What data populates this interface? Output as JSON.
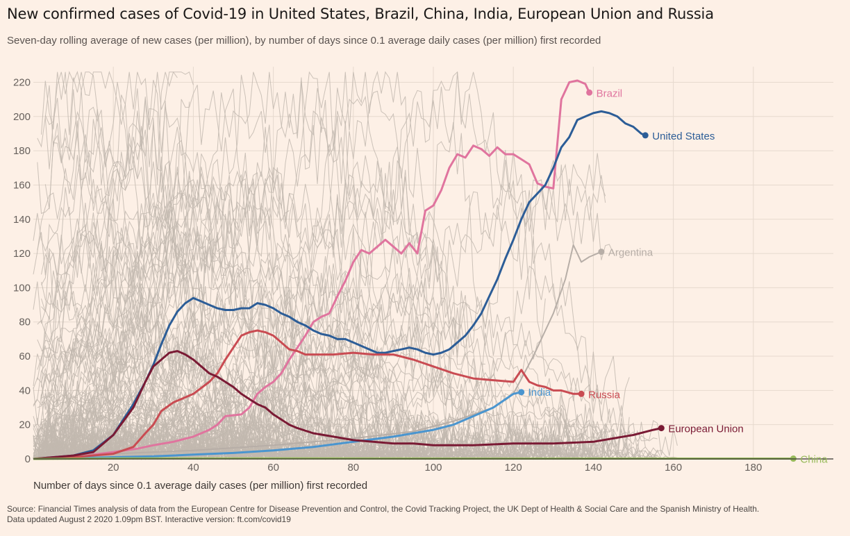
{
  "header": {
    "title": "New confirmed cases of Covid-19 in United States, Brazil, China, India, European Union and Russia",
    "subtitle": "Seven-day rolling average of new cases (per million), by number of days since 0.1 average daily cases (per million) first recorded"
  },
  "footer": {
    "source": "Source: Financial Times analysis of data from the European Centre for Disease Prevention and Control, the Covid Tracking Project, the UK Dept of Health & Social Care and the Spanish Ministry of Health.",
    "updated": "Data updated August 2 2020 1.09pm BST. Interactive version: ft.com/covid19"
  },
  "colors": {
    "background": "#fdf0e6",
    "grid": "#e6d9ce",
    "axis": "#33302e",
    "other_countries": "#c2b8af",
    "Brazil": "#e0749e",
    "United States": "#2c5d97",
    "Argentina": "#b7aea7",
    "India": "#4a95cf",
    "Russia": "#c94b52",
    "European Union": "#7a1a34",
    "China": "#98bb5c"
  },
  "chart_data": {
    "type": "line",
    "title": "New confirmed cases of Covid-19 in United States, Brazil, China, India, European Union and Russia",
    "subtitle": "Seven-day rolling average of new cases (per million), by number of days since 0.1 average daily cases (per million) first recorded",
    "xlabel": "Number of days since 0.1 average daily cases (per million) first recorded",
    "ylabel": "",
    "xlim": [
      0,
      190
    ],
    "ylim": [
      0,
      225
    ],
    "x_ticks": [
      20,
      40,
      60,
      80,
      100,
      120,
      140,
      160,
      180
    ],
    "y_ticks": [
      0,
      20,
      40,
      60,
      80,
      100,
      120,
      140,
      160,
      180,
      200,
      220
    ],
    "grid": "vertical and horizontal",
    "background_series": "many other countries drawn in light grey (unlabelled)",
    "series": [
      {
        "name": "Brazil",
        "points": [
          [
            0,
            0
          ],
          [
            10,
            1
          ],
          [
            20,
            4
          ],
          [
            26,
            6
          ],
          [
            30,
            8
          ],
          [
            35,
            10
          ],
          [
            40,
            13
          ],
          [
            44,
            17
          ],
          [
            46,
            20
          ],
          [
            48,
            25
          ],
          [
            52,
            26
          ],
          [
            54,
            30
          ],
          [
            56,
            38
          ],
          [
            58,
            42
          ],
          [
            60,
            45
          ],
          [
            62,
            50
          ],
          [
            64,
            58
          ],
          [
            66,
            65
          ],
          [
            68,
            72
          ],
          [
            70,
            80
          ],
          [
            72,
            83
          ],
          [
            74,
            85
          ],
          [
            76,
            95
          ],
          [
            78,
            104
          ],
          [
            80,
            115
          ],
          [
            82,
            122
          ],
          [
            84,
            120
          ],
          [
            86,
            124
          ],
          [
            88,
            128
          ],
          [
            90,
            124
          ],
          [
            92,
            120
          ],
          [
            94,
            126
          ],
          [
            96,
            120
          ],
          [
            98,
            145
          ],
          [
            100,
            148
          ],
          [
            102,
            157
          ],
          [
            104,
            170
          ],
          [
            106,
            178
          ],
          [
            108,
            176
          ],
          [
            110,
            183
          ],
          [
            112,
            181
          ],
          [
            114,
            177
          ],
          [
            116,
            182
          ],
          [
            118,
            178
          ],
          [
            120,
            178
          ],
          [
            122,
            175
          ],
          [
            124,
            172
          ],
          [
            126,
            161
          ],
          [
            128,
            159
          ],
          [
            130,
            158
          ],
          [
            132,
            210
          ],
          [
            134,
            220
          ],
          [
            136,
            221
          ],
          [
            138,
            219
          ],
          [
            139,
            214
          ]
        ]
      },
      {
        "name": "United States",
        "points": [
          [
            0,
            0
          ],
          [
            10,
            2
          ],
          [
            15,
            5
          ],
          [
            20,
            14
          ],
          [
            25,
            32
          ],
          [
            28,
            45
          ],
          [
            30,
            55
          ],
          [
            32,
            67
          ],
          [
            34,
            78
          ],
          [
            36,
            86
          ],
          [
            38,
            91
          ],
          [
            40,
            94
          ],
          [
            42,
            92
          ],
          [
            44,
            90
          ],
          [
            46,
            88
          ],
          [
            48,
            87
          ],
          [
            50,
            87
          ],
          [
            52,
            88
          ],
          [
            54,
            88
          ],
          [
            56,
            91
          ],
          [
            58,
            90
          ],
          [
            60,
            88
          ],
          [
            62,
            85
          ],
          [
            64,
            83
          ],
          [
            66,
            80
          ],
          [
            68,
            78
          ],
          [
            70,
            75
          ],
          [
            72,
            73
          ],
          [
            74,
            72
          ],
          [
            76,
            70
          ],
          [
            78,
            70
          ],
          [
            80,
            68
          ],
          [
            82,
            66
          ],
          [
            84,
            64
          ],
          [
            86,
            62
          ],
          [
            88,
            62
          ],
          [
            90,
            63
          ],
          [
            92,
            64
          ],
          [
            94,
            65
          ],
          [
            96,
            64
          ],
          [
            98,
            62
          ],
          [
            100,
            61
          ],
          [
            102,
            62
          ],
          [
            104,
            64
          ],
          [
            106,
            68
          ],
          [
            108,
            72
          ],
          [
            110,
            78
          ],
          [
            112,
            85
          ],
          [
            114,
            95
          ],
          [
            116,
            105
          ],
          [
            118,
            117
          ],
          [
            120,
            128
          ],
          [
            122,
            140
          ],
          [
            124,
            150
          ],
          [
            126,
            155
          ],
          [
            128,
            160
          ],
          [
            130,
            170
          ],
          [
            132,
            182
          ],
          [
            134,
            188
          ],
          [
            136,
            198
          ],
          [
            138,
            200
          ],
          [
            140,
            202
          ],
          [
            142,
            203
          ],
          [
            144,
            202
          ],
          [
            146,
            200
          ],
          [
            148,
            196
          ],
          [
            150,
            194
          ],
          [
            152,
            190
          ],
          [
            153,
            189
          ]
        ]
      },
      {
        "name": "Argentina",
        "points": [
          [
            0,
            0
          ],
          [
            20,
            3
          ],
          [
            40,
            5
          ],
          [
            60,
            8
          ],
          [
            80,
            12
          ],
          [
            95,
            16
          ],
          [
            105,
            22
          ],
          [
            115,
            30
          ],
          [
            120,
            38
          ],
          [
            125,
            60
          ],
          [
            130,
            85
          ],
          [
            133,
            105
          ],
          [
            135,
            125
          ],
          [
            137,
            115
          ],
          [
            139,
            118
          ],
          [
            141,
            120
          ],
          [
            142,
            121
          ]
        ]
      },
      {
        "name": "India",
        "points": [
          [
            0,
            0
          ],
          [
            10,
            0.5
          ],
          [
            20,
            1
          ],
          [
            30,
            1.5
          ],
          [
            40,
            2.5
          ],
          [
            50,
            3.5
          ],
          [
            60,
            5
          ],
          [
            70,
            7
          ],
          [
            80,
            10
          ],
          [
            90,
            13
          ],
          [
            100,
            17
          ],
          [
            105,
            20
          ],
          [
            110,
            25
          ],
          [
            115,
            30
          ],
          [
            120,
            38
          ],
          [
            122,
            39
          ]
        ]
      },
      {
        "name": "Russia",
        "points": [
          [
            0,
            0
          ],
          [
            10,
            1
          ],
          [
            20,
            3
          ],
          [
            25,
            7
          ],
          [
            28,
            15
          ],
          [
            30,
            20
          ],
          [
            32,
            28
          ],
          [
            35,
            33
          ],
          [
            38,
            36
          ],
          [
            40,
            38
          ],
          [
            44,
            45
          ],
          [
            46,
            50
          ],
          [
            48,
            58
          ],
          [
            50,
            65
          ],
          [
            52,
            72
          ],
          [
            54,
            74
          ],
          [
            56,
            75
          ],
          [
            58,
            74
          ],
          [
            60,
            72
          ],
          [
            62,
            68
          ],
          [
            64,
            64
          ],
          [
            66,
            63
          ],
          [
            68,
            61
          ],
          [
            70,
            61
          ],
          [
            75,
            61
          ],
          [
            80,
            62
          ],
          [
            85,
            61
          ],
          [
            90,
            61
          ],
          [
            95,
            58
          ],
          [
            100,
            54
          ],
          [
            105,
            50
          ],
          [
            110,
            47
          ],
          [
            115,
            46
          ],
          [
            120,
            45
          ],
          [
            122,
            52
          ],
          [
            124,
            45
          ],
          [
            126,
            43
          ],
          [
            128,
            42
          ],
          [
            130,
            40
          ],
          [
            132,
            40
          ],
          [
            135,
            38
          ],
          [
            137,
            38
          ]
        ]
      },
      {
        "name": "European Union",
        "points": [
          [
            0,
            0
          ],
          [
            10,
            2
          ],
          [
            15,
            4
          ],
          [
            20,
            14
          ],
          [
            25,
            30
          ],
          [
            28,
            45
          ],
          [
            30,
            54
          ],
          [
            32,
            58
          ],
          [
            34,
            62
          ],
          [
            36,
            63
          ],
          [
            38,
            61
          ],
          [
            40,
            58
          ],
          [
            42,
            54
          ],
          [
            44,
            50
          ],
          [
            46,
            48
          ],
          [
            48,
            45
          ],
          [
            50,
            42
          ],
          [
            52,
            38
          ],
          [
            54,
            35
          ],
          [
            56,
            32
          ],
          [
            58,
            30
          ],
          [
            60,
            26
          ],
          [
            62,
            23
          ],
          [
            64,
            20
          ],
          [
            66,
            18
          ],
          [
            70,
            15
          ],
          [
            75,
            13
          ],
          [
            80,
            11
          ],
          [
            85,
            10
          ],
          [
            90,
            9
          ],
          [
            95,
            9
          ],
          [
            100,
            8
          ],
          [
            110,
            8
          ],
          [
            120,
            9
          ],
          [
            130,
            9
          ],
          [
            140,
            10
          ],
          [
            145,
            12
          ],
          [
            150,
            14
          ],
          [
            155,
            17
          ],
          [
            157,
            18
          ]
        ]
      },
      {
        "name": "China",
        "points": [
          [
            0,
            0
          ],
          [
            20,
            0.3
          ],
          [
            60,
            0.3
          ],
          [
            100,
            0.2
          ],
          [
            140,
            0.2
          ],
          [
            180,
            0.2
          ],
          [
            190,
            0.2
          ]
        ]
      }
    ],
    "annotations": [
      "Brazil",
      "United States",
      "Argentina",
      "India",
      "Russia",
      "European Union",
      "China"
    ]
  }
}
